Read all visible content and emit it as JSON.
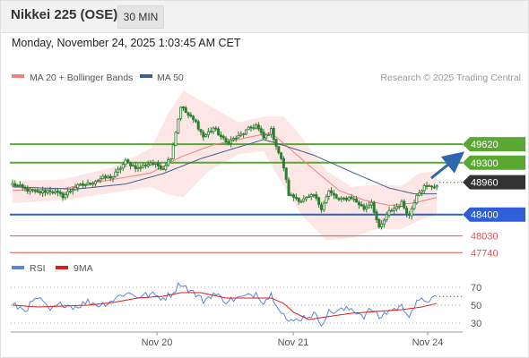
{
  "header": {
    "title": "Nikkei 225 (OSE)",
    "timeframe": "30 MIN"
  },
  "datetime": "Monday, November 24, 2025 1:03:45 AM CET",
  "legend": {
    "ma20_label": "MA 20 + Bollinger Bands",
    "ma50_label": "MA 50",
    "credit": "Research © 2025 Trading Central"
  },
  "rsi_legend": {
    "rsi_label": "RSI",
    "ma_label": "9MA"
  },
  "colors": {
    "candle": "#2e7d32",
    "bollinger": "#fde6e6",
    "ma20": "#f08080",
    "ma50": "#3d5f8f",
    "resistance": "#5aa832",
    "support_blue": "#2f5fd8",
    "support_red": "#e05555",
    "rsi": "#5b84d6",
    "rsi_ma": "#d91e1e",
    "arrow": "#2f66b0",
    "last_price_box": "#333333"
  },
  "chart_data": [
    {
      "type": "candlestick",
      "title": "Nikkei 225 (OSE)",
      "interval": "30 MIN",
      "ylim": [
        47620,
        50600
      ],
      "x_labels": [
        "Nov 20",
        "Nov 21",
        "Nov 24"
      ],
      "last_price": 48960,
      "resistance_levels": [
        49620,
        49300
      ],
      "support_levels": [
        48400,
        48030,
        47740
      ],
      "close_anchors": [
        [
          0,
          48930
        ],
        [
          5,
          48840
        ],
        [
          10,
          48780
        ],
        [
          15,
          48820
        ],
        [
          20,
          48720
        ],
        [
          25,
          48880
        ],
        [
          30,
          48930
        ],
        [
          35,
          49020
        ],
        [
          40,
          49060
        ],
        [
          45,
          49320
        ],
        [
          50,
          49200
        ],
        [
          55,
          49300
        ],
        [
          60,
          49210
        ],
        [
          63,
          49400
        ],
        [
          67,
          50280
        ],
        [
          70,
          50120
        ],
        [
          73,
          50000
        ],
        [
          76,
          49750
        ],
        [
          80,
          49900
        ],
        [
          85,
          49650
        ],
        [
          90,
          49750
        ],
        [
          94,
          49880
        ],
        [
          97,
          49950
        ],
        [
          100,
          49720
        ],
        [
          103,
          49860
        ],
        [
          108,
          49220
        ],
        [
          110,
          48750
        ],
        [
          115,
          48640
        ],
        [
          120,
          48730
        ],
        [
          123,
          48520
        ],
        [
          126,
          48800
        ],
        [
          130,
          48650
        ],
        [
          135,
          48700
        ],
        [
          140,
          48500
        ],
        [
          143,
          48620
        ],
        [
          146,
          48150
        ],
        [
          150,
          48450
        ],
        [
          155,
          48600
        ],
        [
          158,
          48380
        ],
        [
          161,
          48760
        ],
        [
          164,
          48880
        ],
        [
          169,
          48900
        ]
      ],
      "series": [
        {
          "name": "MA 20",
          "anchors": [
            [
              0,
              48820
            ],
            [
              20,
              48850
            ],
            [
              40,
              49010
            ],
            [
              55,
              49120
            ],
            [
              67,
              49400
            ],
            [
              80,
              49610
            ],
            [
              95,
              49750
            ],
            [
              103,
              49820
            ],
            [
              110,
              49560
            ],
            [
              120,
              49180
            ],
            [
              130,
              48820
            ],
            [
              140,
              48650
            ],
            [
              150,
              48560
            ],
            [
              160,
              48600
            ],
            [
              169,
              48700
            ]
          ]
        },
        {
          "name": "MA 50",
          "anchors": [
            [
              0,
              48880
            ],
            [
              25,
              48840
            ],
            [
              45,
              48930
            ],
            [
              60,
              49110
            ],
            [
              75,
              49370
            ],
            [
              90,
              49570
            ],
            [
              100,
              49700
            ],
            [
              108,
              49600
            ],
            [
              120,
              49430
            ],
            [
              135,
              49140
            ],
            [
              150,
              48860
            ],
            [
              160,
              48760
            ],
            [
              169,
              48760
            ]
          ]
        },
        {
          "name": "Bollinger Upper",
          "anchors": [
            [
              0,
              48980
            ],
            [
              20,
              49010
            ],
            [
              40,
              49220
            ],
            [
              55,
              49550
            ],
            [
              62,
              50150
            ],
            [
              68,
              50550
            ],
            [
              78,
              50300
            ],
            [
              90,
              50000
            ],
            [
              100,
              50100
            ],
            [
              108,
              50100
            ],
            [
              115,
              49750
            ],
            [
              125,
              49160
            ],
            [
              135,
              48880
            ],
            [
              145,
              48920
            ],
            [
              155,
              48900
            ],
            [
              162,
              49120
            ],
            [
              169,
              49150
            ]
          ]
        },
        {
          "name": "Bollinger Lower",
          "anchors": [
            [
              0,
              48600
            ],
            [
              20,
              48650
            ],
            [
              40,
              48780
            ],
            [
              55,
              48880
            ],
            [
              62,
              48750
            ],
            [
              68,
              48700
            ],
            [
              78,
              49150
            ],
            [
              90,
              49450
            ],
            [
              100,
              49500
            ],
            [
              108,
              48900
            ],
            [
              115,
              48400
            ],
            [
              125,
              47950
            ],
            [
              135,
              48000
            ],
            [
              145,
              48150
            ],
            [
              155,
              48150
            ],
            [
              162,
              48300
            ],
            [
              169,
              48400
            ]
          ]
        }
      ]
    },
    {
      "type": "line",
      "title": "RSI",
      "ylim": [
        15,
        85
      ],
      "y_ticks": [
        70,
        50,
        30
      ],
      "series": [
        {
          "name": "RSI",
          "anchors": [
            [
              0,
              50
            ],
            [
              5,
              45
            ],
            [
              10,
              58
            ],
            [
              15,
              44
            ],
            [
              20,
              52
            ],
            [
              25,
              48
            ],
            [
              30,
              54
            ],
            [
              35,
              50
            ],
            [
              40,
              56
            ],
            [
              45,
              64
            ],
            [
              50,
              60
            ],
            [
              55,
              62
            ],
            [
              60,
              58
            ],
            [
              63,
              62
            ],
            [
              67,
              75
            ],
            [
              70,
              68
            ],
            [
              73,
              62
            ],
            [
              76,
              55
            ],
            [
              80,
              63
            ],
            [
              85,
              55
            ],
            [
              90,
              58
            ],
            [
              94,
              60
            ],
            [
              97,
              64
            ],
            [
              100,
              54
            ],
            [
              103,
              62
            ],
            [
              108,
              40
            ],
            [
              110,
              30
            ],
            [
              115,
              36
            ],
            [
              120,
              40
            ],
            [
              123,
              30
            ],
            [
              126,
              42
            ],
            [
              130,
              44
            ],
            [
              135,
              46
            ],
            [
              140,
              38
            ],
            [
              143,
              46
            ],
            [
              146,
              36
            ],
            [
              150,
              44
            ],
            [
              155,
              48
            ],
            [
              158,
              40
            ],
            [
              161,
              52
            ],
            [
              164,
              56
            ],
            [
              169,
              57
            ]
          ]
        },
        {
          "name": "9MA",
          "anchors": [
            [
              0,
              50
            ],
            [
              10,
              48
            ],
            [
              20,
              49
            ],
            [
              30,
              50
            ],
            [
              40,
              53
            ],
            [
              50,
              58
            ],
            [
              60,
              60
            ],
            [
              67,
              64
            ],
            [
              75,
              64
            ],
            [
              85,
              58
            ],
            [
              95,
              58
            ],
            [
              103,
              58
            ],
            [
              108,
              52
            ],
            [
              112,
              42
            ],
            [
              118,
              34
            ],
            [
              125,
              37
            ],
            [
              135,
              41
            ],
            [
              145,
              43
            ],
            [
              155,
              45
            ],
            [
              163,
              48
            ],
            [
              169,
              52
            ]
          ]
        }
      ]
    }
  ]
}
